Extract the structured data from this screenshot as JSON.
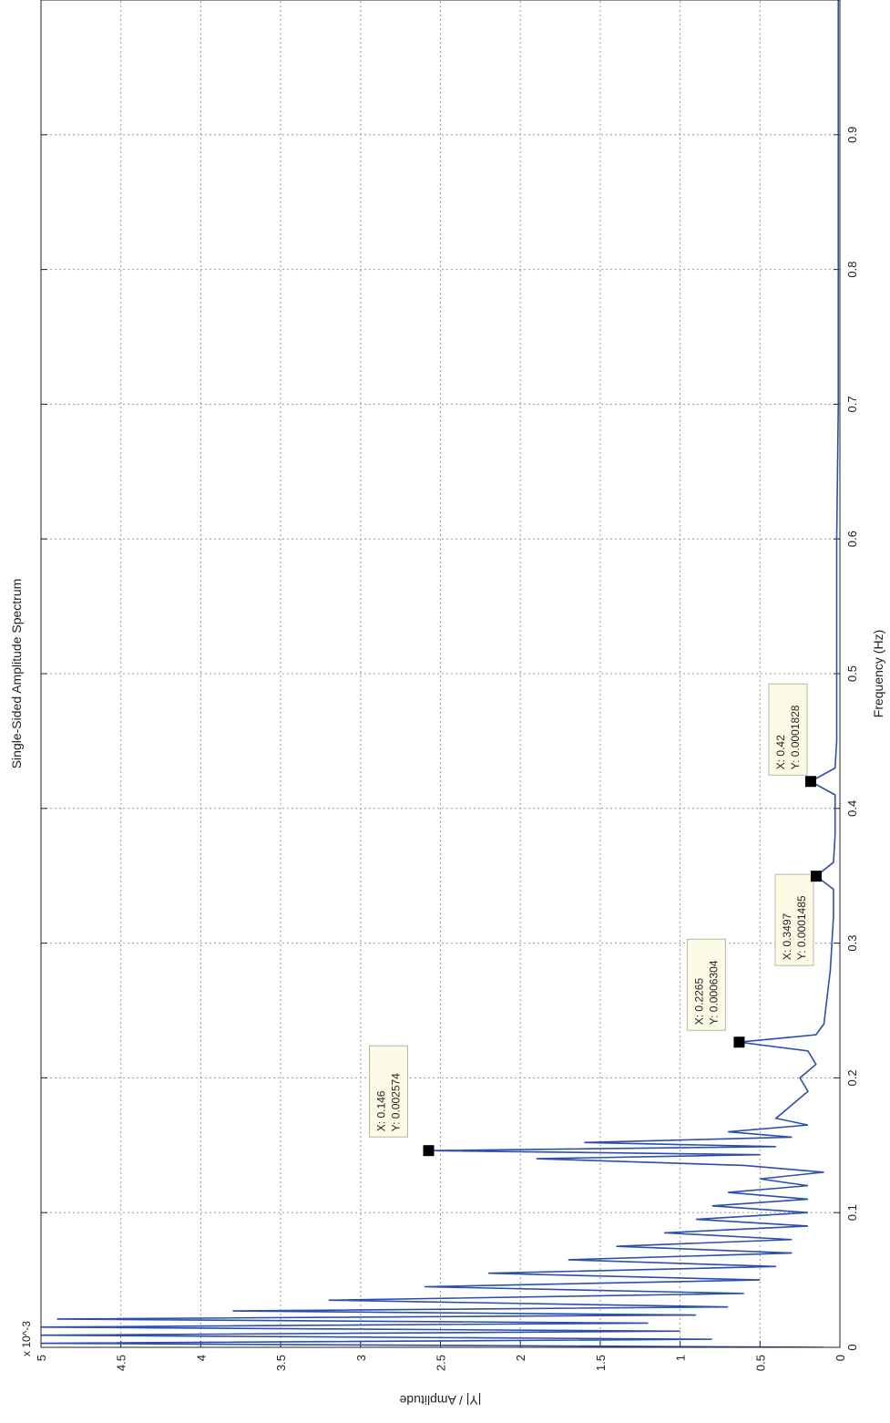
{
  "chart_data": {
    "type": "line",
    "title": "Single-Sided Amplitude Spectrum",
    "x_label": "Frequency (Hz)",
    "y_label": "|Y| / Amplitude",
    "y_exponent_label": "x 10^-3",
    "xlim": [
      0,
      1
    ],
    "ylim": [
      0,
      0.005
    ],
    "xticks": [
      0,
      0.1,
      0.2,
      0.3,
      0.4,
      0.5,
      0.6,
      0.7,
      0.8,
      0.9
    ],
    "yticks": [
      0,
      {
        "value": 0.0005,
        "label": "0.5"
      },
      {
        "value": 0.001,
        "label": "1"
      },
      {
        "value": 0.0015,
        "label": "1.5"
      },
      {
        "value": 0.002,
        "label": "2"
      },
      {
        "value": 0.0025,
        "label": "2.5"
      },
      {
        "value": 0.003,
        "label": "3"
      },
      {
        "value": 0.0035,
        "label": "3.5"
      },
      {
        "value": 0.004,
        "label": "4"
      },
      {
        "value": 0.0045,
        "label": "4.5"
      },
      {
        "value": 0.005,
        "label": "5"
      }
    ],
    "grid": true,
    "x": [
      0,
      0.003,
      0.006,
      0.009,
      0.012,
      0.015,
      0.018,
      0.021,
      0.024,
      0.027,
      0.03,
      0.035,
      0.04,
      0.045,
      0.05,
      0.055,
      0.06,
      0.065,
      0.07,
      0.075,
      0.08,
      0.085,
      0.09,
      0.095,
      0.1,
      0.105,
      0.11,
      0.115,
      0.12,
      0.125,
      0.13,
      0.135,
      0.14,
      0.143,
      0.146,
      0.149,
      0.152,
      0.156,
      0.16,
      0.165,
      0.17,
      0.18,
      0.19,
      0.2,
      0.21,
      0.22,
      0.2265,
      0.232,
      0.24,
      0.26,
      0.28,
      0.3,
      0.32,
      0.34,
      0.3497,
      0.36,
      0.38,
      0.4,
      0.41,
      0.42,
      0.43,
      0.45,
      0.5,
      0.6,
      0.7,
      0.8,
      0.9,
      1
    ],
    "series": [
      {
        "color": "#2b4faa",
        "values": [
          0.0001,
          0.005,
          0.0008,
          0.005,
          0.001,
          0.005,
          0.0012,
          0.0049,
          0.0009,
          0.0038,
          0.0007,
          0.0032,
          0.0006,
          0.0026,
          0.0005,
          0.0022,
          0.0004,
          0.0017,
          0.0003,
          0.0014,
          0.0003,
          0.0011,
          0.0002,
          0.0009,
          0.0002,
          0.0008,
          0.0002,
          0.0007,
          0.0002,
          0.0005,
          0.0001,
          0.0006,
          0.0019,
          0.0005,
          0.002574,
          0.0004,
          0.0016,
          0.0003,
          0.0007,
          0.0002,
          0.0004,
          0.0003,
          0.0002,
          0.00025,
          0.00015,
          0.0002,
          0.0006304,
          0.00015,
          0.0001,
          8e-05,
          6e-05,
          5e-05,
          4e-05,
          4e-05,
          0.0001485,
          4e-05,
          3e-05,
          3e-05,
          3e-05,
          0.0001828,
          3e-05,
          2e-05,
          2e-05,
          2e-05,
          1e-05,
          1e-05,
          1e-05,
          1e-05
        ]
      }
    ],
    "annotations": [
      {
        "x": 0.146,
        "y": 0.002574,
        "text": [
          "X: 0.146",
          "Y: 0.002574"
        ]
      },
      {
        "x": 0.2265,
        "y": 0.0006304,
        "text": [
          "X: 0.2265",
          "Y: 0.0006304"
        ]
      },
      {
        "x": 0.3497,
        "y": 0.0001485,
        "text": [
          "X: 0.3497",
          "Y: 0.0001485"
        ]
      },
      {
        "x": 0.42,
        "y": 0.0001828,
        "text": [
          "X: 0.42",
          "Y: 0.0001828"
        ]
      }
    ]
  }
}
